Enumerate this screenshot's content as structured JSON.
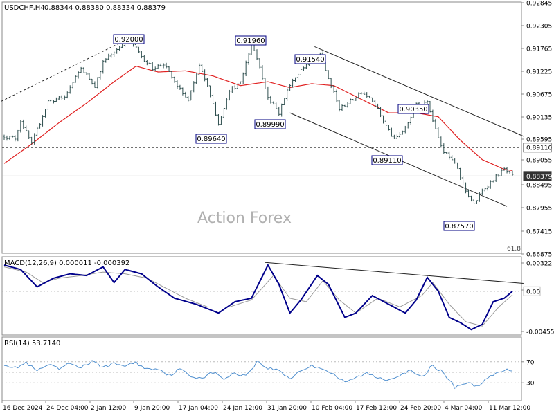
{
  "header": {
    "symbol": "USDCHF,H4",
    "ohlc": "0.88344 0.88380 0.88334 0.88379",
    "watermark": "Action Forex"
  },
  "colors": {
    "price_bars": "#2f4f4f",
    "ma_line": "#e02020",
    "macd_line": "#00008b",
    "signal_line": "#999999",
    "rsi_line": "#4f8fcf",
    "dashed": "#444444",
    "trend": "#222222",
    "price_box": "#333333"
  },
  "chart_data": [
    {
      "type": "candlestick",
      "name": "price",
      "yaxis_ticks": [
        "0.92845",
        "0.92305",
        "0.91765",
        "0.91225",
        "0.90675",
        "0.90135",
        "0.89595",
        "0.89055",
        "0.88495",
        "0.87955",
        "0.87415",
        "0.86875"
      ],
      "ylim": [
        0.86875,
        0.92845
      ],
      "x_ticks": [
        "16 Dec 2024",
        "24 Dec 04:00",
        "2 Jan 12:00",
        "9 Jan 20:00",
        "17 Jan 04:00",
        "24 Jan 12:00",
        "31 Jan 20:00",
        "10 Feb 04:00",
        "17 Feb 12:00",
        "24 Feb 20:00",
        "4 Mar 04:00",
        "11 Mar 12:00"
      ],
      "annotations": [
        {
          "text": "0.92000",
          "value": 0.92
        },
        {
          "text": "0.91960",
          "value": 0.9196
        },
        {
          "text": "0.91540",
          "value": 0.9154
        },
        {
          "text": "0.90350",
          "value": 0.9035
        },
        {
          "text": "0.89640",
          "value": 0.8964
        },
        {
          "text": "0.89990",
          "value": 0.8999
        },
        {
          "text": "0.89110",
          "value": 0.8911
        },
        {
          "text": "0.87570",
          "value": 0.8757
        }
      ],
      "level_line": {
        "text": "0.89110",
        "value": 0.8911
      },
      "last_price": {
        "text": "0.88379",
        "value": 0.88379
      },
      "fib_label": "61.8",
      "key_points": [
        {
          "i": 0,
          "v": 0.894
        },
        {
          "i": 4,
          "v": 0.8935
        },
        {
          "i": 6,
          "v": 0.898
        },
        {
          "i": 10,
          "v": 0.892
        },
        {
          "i": 16,
          "v": 0.903
        },
        {
          "i": 22,
          "v": 0.904
        },
        {
          "i": 28,
          "v": 0.9115
        },
        {
          "i": 33,
          "v": 0.907
        },
        {
          "i": 36,
          "v": 0.913
        },
        {
          "i": 42,
          "v": 0.917
        },
        {
          "i": 45,
          "v": 0.9195
        },
        {
          "i": 50,
          "v": 0.9145
        },
        {
          "i": 54,
          "v": 0.9115
        },
        {
          "i": 58,
          "v": 0.9125
        },
        {
          "i": 62,
          "v": 0.908
        },
        {
          "i": 67,
          "v": 0.903
        },
        {
          "i": 71,
          "v": 0.912
        },
        {
          "i": 75,
          "v": 0.905
        },
        {
          "i": 78,
          "v": 0.897
        },
        {
          "i": 82,
          "v": 0.906
        },
        {
          "i": 86,
          "v": 0.9075
        },
        {
          "i": 90,
          "v": 0.918
        },
        {
          "i": 93,
          "v": 0.912
        },
        {
          "i": 96,
          "v": 0.904
        },
        {
          "i": 100,
          "v": 0.9
        },
        {
          "i": 104,
          "v": 0.9075
        },
        {
          "i": 108,
          "v": 0.911
        },
        {
          "i": 112,
          "v": 0.914
        },
        {
          "i": 115,
          "v": 0.9148
        },
        {
          "i": 118,
          "v": 0.909
        },
        {
          "i": 122,
          "v": 0.901
        },
        {
          "i": 126,
          "v": 0.903
        },
        {
          "i": 130,
          "v": 0.9055
        },
        {
          "i": 134,
          "v": 0.9035
        },
        {
          "i": 138,
          "v": 0.898
        },
        {
          "i": 142,
          "v": 0.893
        },
        {
          "i": 146,
          "v": 0.896
        },
        {
          "i": 150,
          "v": 0.902
        },
        {
          "i": 154,
          "v": 0.903
        },
        {
          "i": 157,
          "v": 0.896
        },
        {
          "i": 160,
          "v": 0.89
        },
        {
          "i": 164,
          "v": 0.887
        },
        {
          "i": 168,
          "v": 0.88
        },
        {
          "i": 171,
          "v": 0.8765
        },
        {
          "i": 174,
          "v": 0.88
        },
        {
          "i": 178,
          "v": 0.883
        },
        {
          "i": 182,
          "v": 0.8855
        },
        {
          "i": 185,
          "v": 0.8838
        }
      ],
      "ma_points": [
        {
          "i": 0,
          "v": 0.887
        },
        {
          "i": 10,
          "v": 0.892
        },
        {
          "i": 20,
          "v": 0.8975
        },
        {
          "i": 30,
          "v": 0.9025
        },
        {
          "i": 40,
          "v": 0.908
        },
        {
          "i": 48,
          "v": 0.912
        },
        {
          "i": 56,
          "v": 0.9105
        },
        {
          "i": 66,
          "v": 0.9108
        },
        {
          "i": 76,
          "v": 0.9095
        },
        {
          "i": 86,
          "v": 0.907
        },
        {
          "i": 96,
          "v": 0.908
        },
        {
          "i": 104,
          "v": 0.9065
        },
        {
          "i": 112,
          "v": 0.9075
        },
        {
          "i": 120,
          "v": 0.907
        },
        {
          "i": 130,
          "v": 0.9035
        },
        {
          "i": 140,
          "v": 0.9
        },
        {
          "i": 150,
          "v": 0.9
        },
        {
          "i": 158,
          "v": 0.899
        },
        {
          "i": 166,
          "v": 0.893
        },
        {
          "i": 174,
          "v": 0.888
        },
        {
          "i": 182,
          "v": 0.8855
        },
        {
          "i": 185,
          "v": 0.8852
        }
      ],
      "trendlines": [
        {
          "style": "dashed",
          "from": {
            "i": -1,
            "v": 0.903
          },
          "to": {
            "i": 48,
            "v": 0.92
          }
        },
        {
          "style": "solid",
          "from": {
            "i": 113,
            "v": 0.917
          },
          "to": {
            "i": 189,
            "v": 0.894
          }
        },
        {
          "style": "solid",
          "from": {
            "i": 104,
            "v": 0.9
          },
          "to": {
            "i": 183,
            "v": 0.876
          }
        }
      ]
    },
    {
      "type": "line",
      "name": "macd",
      "title": "MACD(12,26,9) 0.000011 -0.000392",
      "yaxis_ticks": [
        "0.00322",
        "0.00",
        "-0.004559"
      ],
      "ylim": [
        -0.0047,
        0.0034
      ],
      "zero_label": "0.00",
      "macd_points": [
        {
          "i": 0,
          "v": 0.003
        },
        {
          "i": 6,
          "v": 0.0025
        },
        {
          "i": 12,
          "v": 0.0005
        },
        {
          "i": 18,
          "v": 0.0015
        },
        {
          "i": 24,
          "v": 0.002
        },
        {
          "i": 30,
          "v": 0.0018
        },
        {
          "i": 36,
          "v": 0.0028
        },
        {
          "i": 40,
          "v": 0.001
        },
        {
          "i": 44,
          "v": 0.0025
        },
        {
          "i": 50,
          "v": 0.002
        },
        {
          "i": 56,
          "v": 0.0005
        },
        {
          "i": 62,
          "v": -0.0008
        },
        {
          "i": 70,
          "v": -0.0015
        },
        {
          "i": 78,
          "v": -0.0025
        },
        {
          "i": 84,
          "v": -0.0012
        },
        {
          "i": 90,
          "v": -0.0008
        },
        {
          "i": 96,
          "v": 0.003
        },
        {
          "i": 100,
          "v": 0.0008
        },
        {
          "i": 104,
          "v": -0.0025
        },
        {
          "i": 108,
          "v": -0.001
        },
        {
          "i": 114,
          "v": 0.0018
        },
        {
          "i": 118,
          "v": 0.0008
        },
        {
          "i": 124,
          "v": -0.003
        },
        {
          "i": 128,
          "v": -0.0025
        },
        {
          "i": 134,
          "v": -0.0005
        },
        {
          "i": 140,
          "v": -0.0015
        },
        {
          "i": 146,
          "v": -0.0025
        },
        {
          "i": 150,
          "v": -0.001
        },
        {
          "i": 154,
          "v": 0.0016
        },
        {
          "i": 158,
          "v": 0.0
        },
        {
          "i": 162,
          "v": -0.003
        },
        {
          "i": 166,
          "v": -0.0036
        },
        {
          "i": 170,
          "v": -0.0044
        },
        {
          "i": 174,
          "v": -0.0038
        },
        {
          "i": 178,
          "v": -0.0012
        },
        {
          "i": 182,
          "v": -0.0008
        },
        {
          "i": 185,
          "v": 0.0
        }
      ],
      "signal_points": [
        {
          "i": 0,
          "v": 0.0028
        },
        {
          "i": 8,
          "v": 0.0022
        },
        {
          "i": 14,
          "v": 0.001
        },
        {
          "i": 20,
          "v": 0.0015
        },
        {
          "i": 28,
          "v": 0.0018
        },
        {
          "i": 36,
          "v": 0.0022
        },
        {
          "i": 44,
          "v": 0.002
        },
        {
          "i": 52,
          "v": 0.0015
        },
        {
          "i": 58,
          "v": 0.0005
        },
        {
          "i": 66,
          "v": -0.0008
        },
        {
          "i": 74,
          "v": -0.0018
        },
        {
          "i": 82,
          "v": -0.0018
        },
        {
          "i": 90,
          "v": -0.001
        },
        {
          "i": 98,
          "v": 0.0018
        },
        {
          "i": 104,
          "v": -0.0008
        },
        {
          "i": 110,
          "v": -0.0012
        },
        {
          "i": 116,
          "v": 0.0012
        },
        {
          "i": 122,
          "v": -0.001
        },
        {
          "i": 128,
          "v": -0.0025
        },
        {
          "i": 136,
          "v": -0.0008
        },
        {
          "i": 144,
          "v": -0.0018
        },
        {
          "i": 152,
          "v": -0.0005
        },
        {
          "i": 156,
          "v": 0.001
        },
        {
          "i": 162,
          "v": -0.0015
        },
        {
          "i": 168,
          "v": -0.0035
        },
        {
          "i": 174,
          "v": -0.004
        },
        {
          "i": 180,
          "v": -0.0018
        },
        {
          "i": 185,
          "v": -0.0004
        }
      ],
      "trendline": {
        "from": {
          "i": 95,
          "v": 0.0033
        },
        "to": {
          "i": 189,
          "v": 0.0009
        }
      }
    },
    {
      "type": "line",
      "name": "rsi",
      "title": "RSI(14) 53.7140",
      "yaxis_ticks": [
        "70",
        "30"
      ],
      "ylim": [
        0,
        100
      ],
      "levels": [
        70,
        50,
        30
      ],
      "rsi_points": [
        {
          "i": 0,
          "v": 66
        },
        {
          "i": 4,
          "v": 58
        },
        {
          "i": 8,
          "v": 68
        },
        {
          "i": 12,
          "v": 52
        },
        {
          "i": 16,
          "v": 64
        },
        {
          "i": 20,
          "v": 56
        },
        {
          "i": 24,
          "v": 67
        },
        {
          "i": 28,
          "v": 60
        },
        {
          "i": 32,
          "v": 70
        },
        {
          "i": 36,
          "v": 60
        },
        {
          "i": 40,
          "v": 66
        },
        {
          "i": 44,
          "v": 63
        },
        {
          "i": 48,
          "v": 68
        },
        {
          "i": 52,
          "v": 56
        },
        {
          "i": 56,
          "v": 58
        },
        {
          "i": 60,
          "v": 44
        },
        {
          "i": 64,
          "v": 56
        },
        {
          "i": 68,
          "v": 42
        },
        {
          "i": 72,
          "v": 40
        },
        {
          "i": 76,
          "v": 50
        },
        {
          "i": 80,
          "v": 38
        },
        {
          "i": 84,
          "v": 48
        },
        {
          "i": 88,
          "v": 44
        },
        {
          "i": 92,
          "v": 70
        },
        {
          "i": 96,
          "v": 58
        },
        {
          "i": 100,
          "v": 54
        },
        {
          "i": 104,
          "v": 38
        },
        {
          "i": 108,
          "v": 54
        },
        {
          "i": 112,
          "v": 62
        },
        {
          "i": 116,
          "v": 58
        },
        {
          "i": 120,
          "v": 46
        },
        {
          "i": 124,
          "v": 30
        },
        {
          "i": 128,
          "v": 40
        },
        {
          "i": 132,
          "v": 48
        },
        {
          "i": 136,
          "v": 40
        },
        {
          "i": 140,
          "v": 36
        },
        {
          "i": 144,
          "v": 46
        },
        {
          "i": 148,
          "v": 52
        },
        {
          "i": 152,
          "v": 40
        },
        {
          "i": 156,
          "v": 64
        },
        {
          "i": 160,
          "v": 48
        },
        {
          "i": 164,
          "v": 22
        },
        {
          "i": 168,
          "v": 30
        },
        {
          "i": 172,
          "v": 24
        },
        {
          "i": 176,
          "v": 38
        },
        {
          "i": 180,
          "v": 50
        },
        {
          "i": 183,
          "v": 54
        },
        {
          "i": 185,
          "v": 54
        }
      ]
    }
  ]
}
